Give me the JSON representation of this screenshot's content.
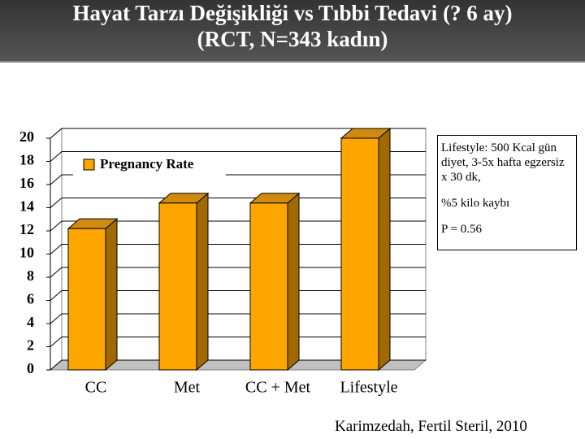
{
  "chart_data": {
    "type": "bar3d",
    "title": "Hayat Tarzı Değişikliği vs Tıbbi Tedavi (? 6 ay)",
    "subtitle": "(RCT, N=343 kadın)",
    "categories": [
      "CC",
      "Met",
      "CC + Met",
      "Lifestyle"
    ],
    "series": [
      {
        "name": "Pregnancy Rate",
        "color": "#ffa500",
        "values": [
          12.2,
          14.4,
          14.4,
          20.0
        ]
      }
    ],
    "ylim": [
      0,
      20
    ],
    "yticks": [
      0,
      2,
      4,
      6,
      8,
      10,
      12,
      14,
      16,
      18,
      20
    ],
    "grid": true,
    "annotations": [
      "Lifestyle: 500 Kcal gün diyet, 3-5x hafta egzersiz x 30 dk,",
      "%5 kilo kaybı",
      "P = 0.56"
    ],
    "source": "Karimzedah, Fertil Steril, 2010"
  }
}
